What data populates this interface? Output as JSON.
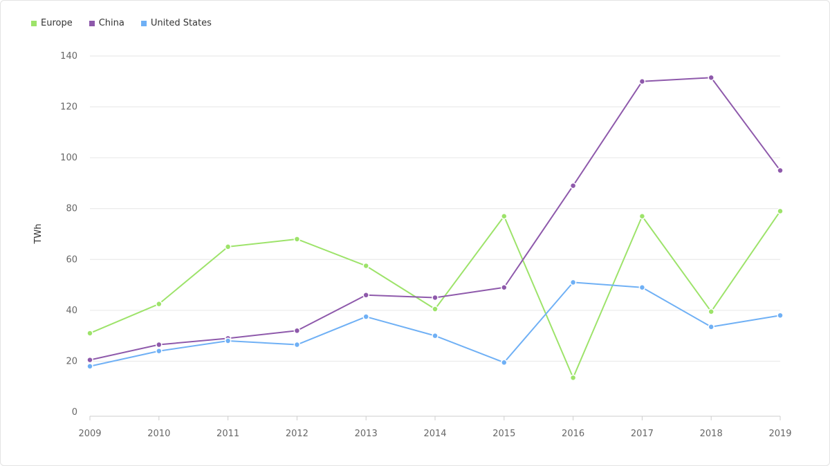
{
  "chart_data": {
    "type": "line",
    "ylabel": "TWh",
    "x": [
      "2009",
      "2010",
      "2011",
      "2012",
      "2013",
      "2014",
      "2015",
      "2016",
      "2017",
      "2018",
      "2019"
    ],
    "ylim": [
      0,
      140
    ],
    "yticks": [
      "0",
      "20",
      "40",
      "60",
      "80",
      "100",
      "120",
      "140"
    ],
    "grid": true,
    "legend_position": "top-left",
    "series": [
      {
        "name": "Europe",
        "color": "#9de36a",
        "values": [
          31,
          42.5,
          65,
          68,
          57.5,
          40.5,
          77,
          13.5,
          77,
          39.5,
          79
        ]
      },
      {
        "name": "China",
        "color": "#8e59ab",
        "values": [
          20.5,
          26.5,
          29,
          32,
          46,
          45,
          49,
          89,
          130,
          131.5,
          95
        ]
      },
      {
        "name": "United States",
        "color": "#6fb0f5",
        "values": [
          18,
          24,
          28,
          26.5,
          37.5,
          30,
          19.5,
          51,
          49,
          33.5,
          38
        ]
      }
    ]
  }
}
